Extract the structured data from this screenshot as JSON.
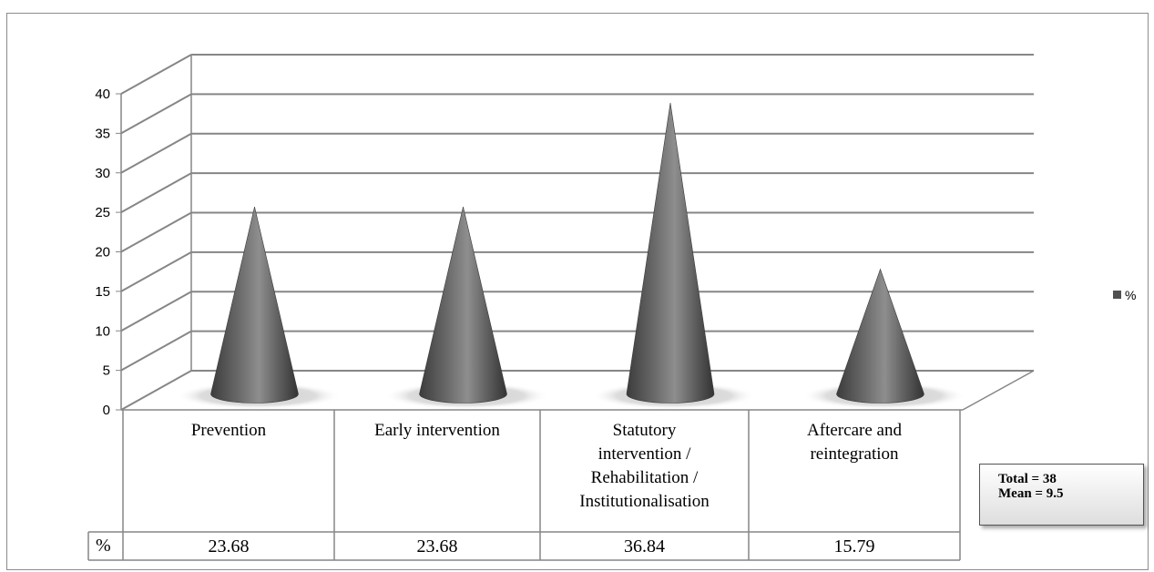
{
  "chart_data": {
    "type": "bar",
    "style": "3d-cone",
    "categories": [
      [
        "Prevention"
      ],
      [
        "Early intervention"
      ],
      [
        "Statutory",
        "intervention /",
        "Rehabilitation /",
        "Institutionalisation"
      ],
      [
        "Aftercare and",
        "reintegration"
      ]
    ],
    "series": [
      {
        "name": "%",
        "values": [
          23.68,
          23.68,
          36.84,
          15.79
        ],
        "color": "#505050"
      }
    ],
    "value_labels": [
      "23.68",
      "23.68",
      "36.84",
      "15.79"
    ],
    "table_row_label": "%",
    "ylim": [
      0,
      40
    ],
    "yticks": [
      0,
      5,
      10,
      15,
      20,
      25,
      30,
      35,
      40
    ],
    "grid": true,
    "legend_position": "right"
  },
  "summary": {
    "total": "Total = 38",
    "mean": "Mean = 9.5"
  }
}
